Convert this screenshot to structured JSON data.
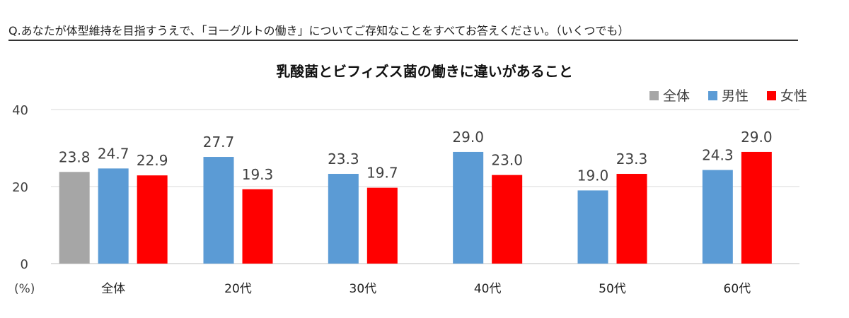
{
  "question": "Q.あなたが体型維持を目指すうえで、「ヨーグルトの働き」についてご存知なことをすべてお答えください。（いくつでも）",
  "chart_data": {
    "type": "bar",
    "title": "乳酸菌とビフィズス菌の働きに違いがあること",
    "ylabel": "(%)",
    "ylim": [
      0,
      40
    ],
    "yticks": [
      0,
      20,
      40
    ],
    "grid": true,
    "legend_position": "top-right",
    "categories": [
      "全体",
      "20代",
      "30代",
      "40代",
      "50代",
      "60代"
    ],
    "series": [
      {
        "name": "全体",
        "color": "#a6a6a6",
        "values": [
          23.8,
          null,
          null,
          null,
          null,
          null
        ]
      },
      {
        "name": "男性",
        "color": "#5b9bd5",
        "values": [
          24.7,
          27.7,
          23.3,
          29.0,
          19.0,
          24.3
        ]
      },
      {
        "name": "女性",
        "color": "#ff0000",
        "values": [
          22.9,
          19.3,
          19.7,
          23.0,
          23.3,
          29.0
        ]
      }
    ]
  }
}
